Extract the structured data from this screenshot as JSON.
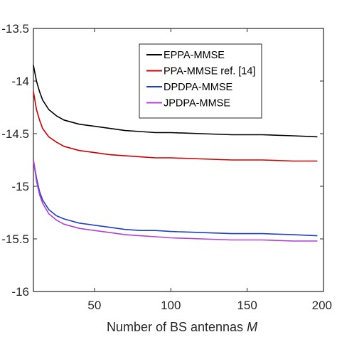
{
  "chart_data": {
    "type": "line",
    "title": "",
    "xlabel": "Number of BS antennas M",
    "ylabel": "",
    "xlim": [
      10,
      200
    ],
    "ylim": [
      -16,
      -13.5
    ],
    "xticks": [
      50,
      100,
      150,
      200
    ],
    "xtick_labels": [
      "50",
      "100",
      "150",
      "200"
    ],
    "yticks": [
      -13.5,
      -14,
      -14.5,
      -15,
      -15.5,
      -16
    ],
    "ytick_labels": [
      "-13.5",
      "-14",
      "-14.5",
      "-15",
      "-15.5",
      "-16"
    ],
    "grid": false,
    "legend_position": "top-right",
    "x": [
      10,
      12,
      14,
      16,
      20,
      25,
      30,
      40,
      50,
      60,
      70,
      80,
      90,
      100,
      120,
      140,
      160,
      180,
      196
    ],
    "series": [
      {
        "name": "EPPA-MMSE",
        "color": "#000000",
        "values": [
          -13.85,
          -14.0,
          -14.1,
          -14.18,
          -14.27,
          -14.33,
          -14.37,
          -14.41,
          -14.43,
          -14.45,
          -14.47,
          -14.48,
          -14.49,
          -14.49,
          -14.5,
          -14.51,
          -14.51,
          -14.52,
          -14.53
        ]
      },
      {
        "name": "PPA-MMSE ref. [14]",
        "color": "#cc0000",
        "values": [
          -14.1,
          -14.27,
          -14.37,
          -14.45,
          -14.53,
          -14.58,
          -14.62,
          -14.66,
          -14.68,
          -14.7,
          -14.71,
          -14.72,
          -14.73,
          -14.73,
          -14.74,
          -14.75,
          -14.75,
          -14.76,
          -14.76
        ]
      },
      {
        "name": "DPDPA-MMSE",
        "color": "#1f3fc4",
        "values": [
          -14.75,
          -14.92,
          -15.05,
          -15.13,
          -15.22,
          -15.28,
          -15.31,
          -15.35,
          -15.37,
          -15.39,
          -15.41,
          -15.42,
          -15.42,
          -15.43,
          -15.44,
          -15.45,
          -15.45,
          -15.46,
          -15.47
        ]
      },
      {
        "name": "JPDPA-MMSE",
        "color": "#b23fd6",
        "values": [
          -14.75,
          -14.95,
          -15.08,
          -15.16,
          -15.26,
          -15.32,
          -15.36,
          -15.4,
          -15.42,
          -15.44,
          -15.46,
          -15.47,
          -15.48,
          -15.49,
          -15.5,
          -15.51,
          -15.51,
          -15.52,
          -15.52
        ]
      }
    ]
  }
}
